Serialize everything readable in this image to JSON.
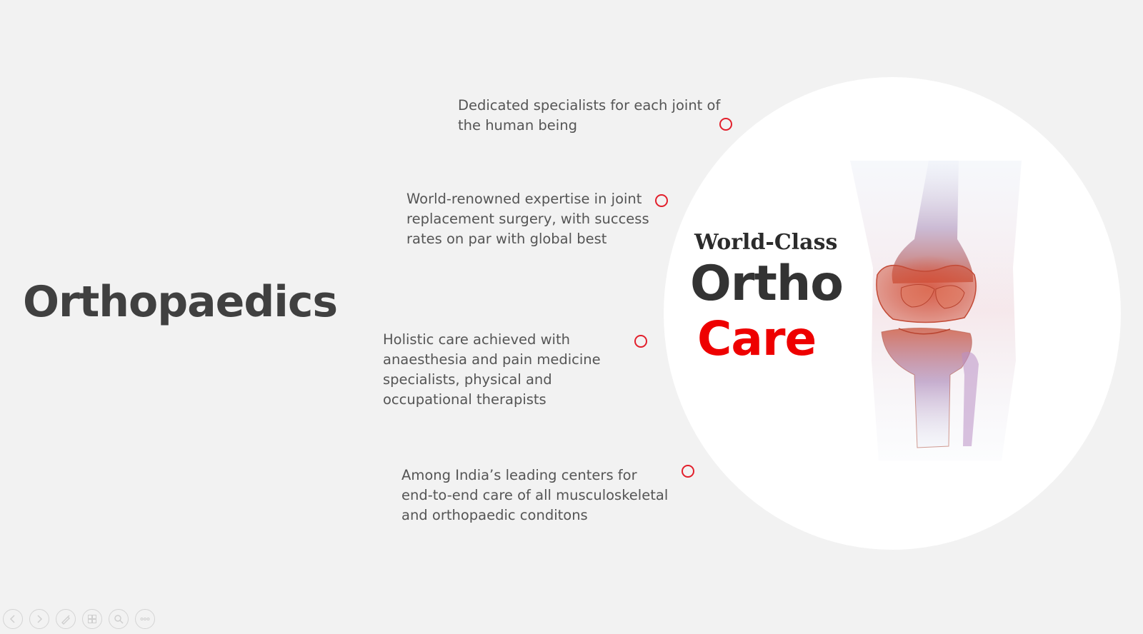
{
  "slide": {
    "title": "Orthopaedics",
    "bullets": [
      {
        "text": "Dedicated specialists for each joint of the human being"
      },
      {
        "text": "World-renowned expertise in joint replacement surgery, with success rates on par with global best"
      },
      {
        "text": "Holistic care achieved with anaesthesia and pain medicine specialists, physical and occupational therapists"
      },
      {
        "text": "Among India’s leading centers for end-to-end care of all musculoskeletal and orthopaedic conditons"
      }
    ],
    "hero": {
      "line1": "World-Class",
      "line2": "Ortho",
      "line3": "Care"
    },
    "image_icon": "knee-joint-xray-icon",
    "colors": {
      "accent": "#ee0000",
      "ring": "#e2202c",
      "title": "#404040",
      "background": "#f2f2f2"
    }
  },
  "toolbar": {
    "buttons": [
      {
        "icon": "previous-slide-icon"
      },
      {
        "icon": "next-slide-icon"
      },
      {
        "icon": "pen-icon"
      },
      {
        "icon": "see-all-slides-icon"
      },
      {
        "icon": "zoom-icon"
      },
      {
        "icon": "more-options-icon"
      }
    ]
  }
}
